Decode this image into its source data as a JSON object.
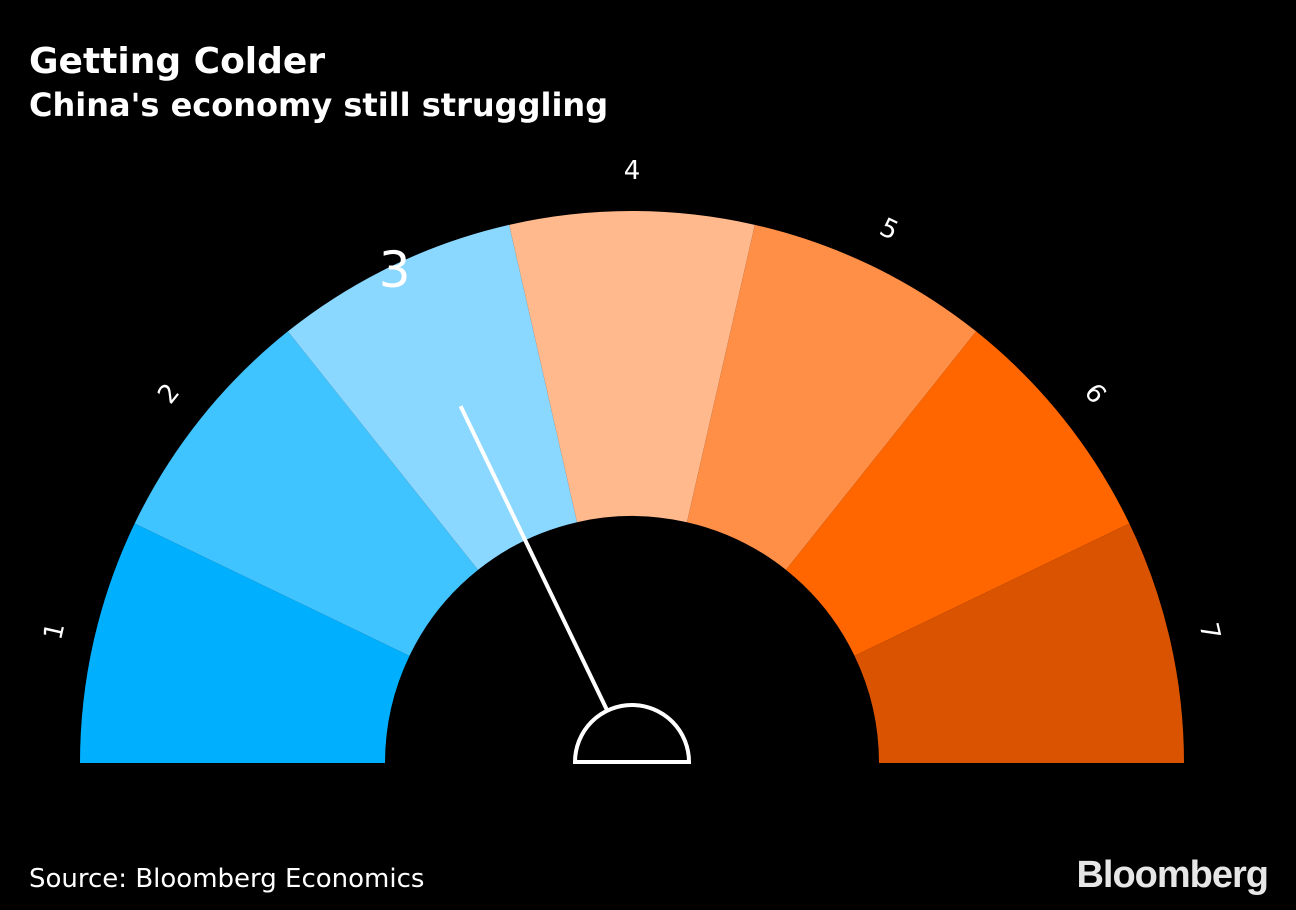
{
  "header": {
    "title": "Getting Colder",
    "subtitle": "China's economy still struggling"
  },
  "chart_data": {
    "type": "gauge",
    "title": "Getting Colder",
    "subtitle": "China's economy still struggling",
    "segments": [
      {
        "label": "1",
        "color": "#00b0ff"
      },
      {
        "label": "2",
        "color": "#40c4ff"
      },
      {
        "label": "3",
        "color": "#8ad7ff"
      },
      {
        "label": "4",
        "color": "#ffb98c"
      },
      {
        "label": "5",
        "color": "#ff8e47"
      },
      {
        "label": "6",
        "color": "#ff6600"
      },
      {
        "label": "7",
        "color": "#da5300"
      }
    ],
    "range": [
      1,
      7
    ],
    "current_value": 3,
    "highlighted_label": "3",
    "needle_color": "#ffffff"
  },
  "footer": {
    "source": "Source: Bloomberg Economics",
    "brand": "Bloomberg"
  }
}
